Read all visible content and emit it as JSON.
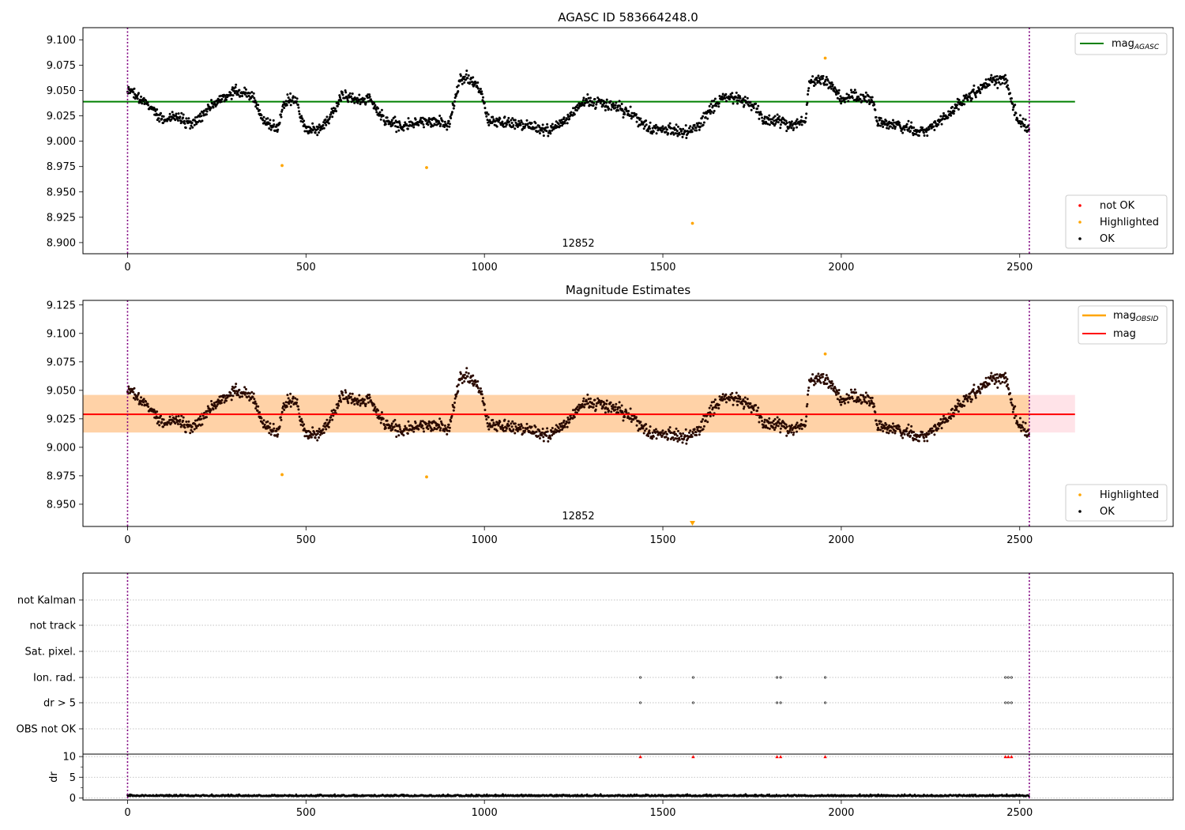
{
  "chart_data": [
    {
      "type": "scatter",
      "title": "AGASC ID 583664248.0",
      "xlim": [
        -125,
        2930
      ],
      "ylim": [
        8.889,
        9.112
      ],
      "xticks": [
        0,
        500,
        1000,
        1500,
        2000,
        2500
      ],
      "xticklabels": [
        "0",
        "500",
        "1000",
        "1500",
        "2000",
        "2500"
      ],
      "yticks": [
        8.9,
        8.925,
        8.95,
        8.975,
        9.0,
        9.025,
        9.05,
        9.075,
        9.1
      ],
      "yticklabels": [
        "8.900",
        "8.925",
        "8.950",
        "8.975",
        "9.000",
        "9.025",
        "9.050",
        "9.075",
        "9.100"
      ],
      "annotation": "12852",
      "vlines": [
        0,
        2527
      ],
      "reference_lines": [
        {
          "name": "mag_AGASC",
          "y": 9.039,
          "x": [
            -125,
            2655
          ],
          "color": "#008000"
        }
      ],
      "legend_lines": [
        {
          "label": "mag",
          "sub": "AGASC",
          "color": "#008000"
        }
      ],
      "legend_points": [
        {
          "label": "not OK",
          "color": "#ff0000"
        },
        {
          "label": "Highlighted",
          "color": "#ffa500"
        },
        {
          "label": "OK",
          "color": "#000000"
        }
      ],
      "highlighted": [
        [
          433,
          8.976
        ],
        [
          838,
          8.974
        ],
        [
          1583,
          8.919
        ],
        [
          1955,
          9.082
        ]
      ],
      "ok_profile": [
        [
          0,
          9.052
        ],
        [
          60,
          9.035
        ],
        [
          100,
          9.02
        ],
        [
          140,
          9.025
        ],
        [
          180,
          9.015
        ],
        [
          220,
          9.03
        ],
        [
          260,
          9.04
        ],
        [
          300,
          9.05
        ],
        [
          350,
          9.045
        ],
        [
          380,
          9.02
        ],
        [
          420,
          9.013
        ],
        [
          440,
          9.04
        ],
        [
          470,
          9.042
        ],
        [
          500,
          9.01
        ],
        [
          540,
          9.012
        ],
        [
          580,
          9.03
        ],
        [
          600,
          9.047
        ],
        [
          640,
          9.04
        ],
        [
          680,
          9.042
        ],
        [
          720,
          9.02
        ],
        [
          760,
          9.015
        ],
        [
          800,
          9.018
        ],
        [
          860,
          9.02
        ],
        [
          900,
          9.015
        ],
        [
          930,
          9.06
        ],
        [
          960,
          9.062
        ],
        [
          990,
          9.05
        ],
        [
          1010,
          9.02
        ],
        [
          1060,
          9.018
        ],
        [
          1120,
          9.015
        ],
        [
          1180,
          9.01
        ],
        [
          1240,
          9.025
        ],
        [
          1280,
          9.04
        ],
        [
          1330,
          9.038
        ],
        [
          1390,
          9.03
        ],
        [
          1420,
          9.025
        ],
        [
          1460,
          9.012
        ],
        [
          1500,
          9.012
        ],
        [
          1560,
          9.008
        ],
        [
          1600,
          9.015
        ],
        [
          1640,
          9.035
        ],
        [
          1680,
          9.045
        ],
        [
          1730,
          9.04
        ],
        [
          1760,
          9.035
        ],
        [
          1780,
          9.02
        ],
        [
          1820,
          9.022
        ],
        [
          1860,
          9.015
        ],
        [
          1900,
          9.02
        ],
        [
          1910,
          9.06
        ],
        [
          1950,
          9.06
        ],
        [
          1970,
          9.055
        ],
        [
          2000,
          9.04
        ],
        [
          2040,
          9.045
        ],
        [
          2090,
          9.04
        ],
        [
          2100,
          9.02
        ],
        [
          2160,
          9.015
        ],
        [
          2220,
          9.01
        ],
        [
          2260,
          9.015
        ],
        [
          2300,
          9.025
        ],
        [
          2340,
          9.04
        ],
        [
          2380,
          9.05
        ],
        [
          2420,
          9.06
        ],
        [
          2460,
          9.06
        ],
        [
          2490,
          9.025
        ],
        [
          2527,
          9.01
        ]
      ],
      "ok_range": [
        0,
        2527
      ]
    },
    {
      "type": "scatter",
      "title": "Magnitude Estimates",
      "xlim": [
        -125,
        2930
      ],
      "ylim": [
        8.9305,
        9.129
      ],
      "xticks": [
        0,
        500,
        1000,
        1500,
        2000,
        2500
      ],
      "xticklabels": [
        "0",
        "500",
        "1000",
        "1500",
        "2000",
        "2500"
      ],
      "yticks": [
        8.95,
        8.975,
        9.0,
        9.025,
        9.05,
        9.075,
        9.1,
        9.125
      ],
      "yticklabels": [
        "8.950",
        "8.975",
        "9.000",
        "9.025",
        "9.050",
        "9.075",
        "9.100",
        "9.125"
      ],
      "annotation": "12852",
      "vlines": [
        0,
        2527
      ],
      "band": {
        "y": [
          9.013,
          9.046
        ],
        "x": [
          -125,
          2655
        ]
      },
      "reference_lines": [
        {
          "name": "mag",
          "y": 9.029,
          "x": [
            -125,
            2655
          ],
          "color": "#ff0000"
        }
      ],
      "legend_lines": [
        {
          "label": "mag",
          "sub": "OBSID",
          "color": "#ffa500"
        },
        {
          "label": "mag",
          "sub": "",
          "color": "#ff0000"
        }
      ],
      "legend_points": [
        {
          "label": "Highlighted",
          "color": "#ffa500"
        },
        {
          "label": "OK",
          "color": "#000000"
        }
      ],
      "highlighted": [
        [
          433,
          8.976
        ],
        [
          838,
          8.974
        ],
        [
          1955,
          9.082
        ]
      ],
      "clipped_marker": {
        "x": 1583
      },
      "ok_profile": "same as panel 1",
      "ok_range": [
        0,
        2527
      ]
    },
    {
      "type": "scatter",
      "title": "",
      "xlim": [
        -125,
        2930
      ],
      "flag_rows": [
        "not Kalman",
        "not track",
        "Sat. pixel.",
        "Ion. rad.",
        "dr > 5",
        "OBS not OK"
      ],
      "flags": {
        "Ion. rad.": [
          1437,
          1585,
          1820,
          1830,
          1955,
          2460,
          2468,
          2477
        ],
        "dr > 5": [
          1437,
          1585,
          1820,
          1830,
          1955,
          2460,
          2468,
          2477
        ]
      },
      "vlines": [
        0,
        2527
      ]
    },
    {
      "type": "scatter",
      "title": "",
      "xlim": [
        -125,
        2930
      ],
      "ylim": [
        -0.5,
        10.6
      ],
      "ylabel": "dr",
      "yticks": [
        0,
        5,
        10
      ],
      "yticklabels": [
        "0",
        "5",
        "10"
      ],
      "xticks": [
        0,
        500,
        1000,
        1500,
        2000,
        2500
      ],
      "xticklabels": [
        "0",
        "500",
        "1000",
        "1500",
        "2000",
        "2500"
      ],
      "dr_outliers": [
        1437,
        1585,
        1820,
        1830,
        1955,
        2460,
        2468,
        2477
      ],
      "dr_baseline": 0.4,
      "vlines": [
        0,
        2527
      ]
    }
  ]
}
